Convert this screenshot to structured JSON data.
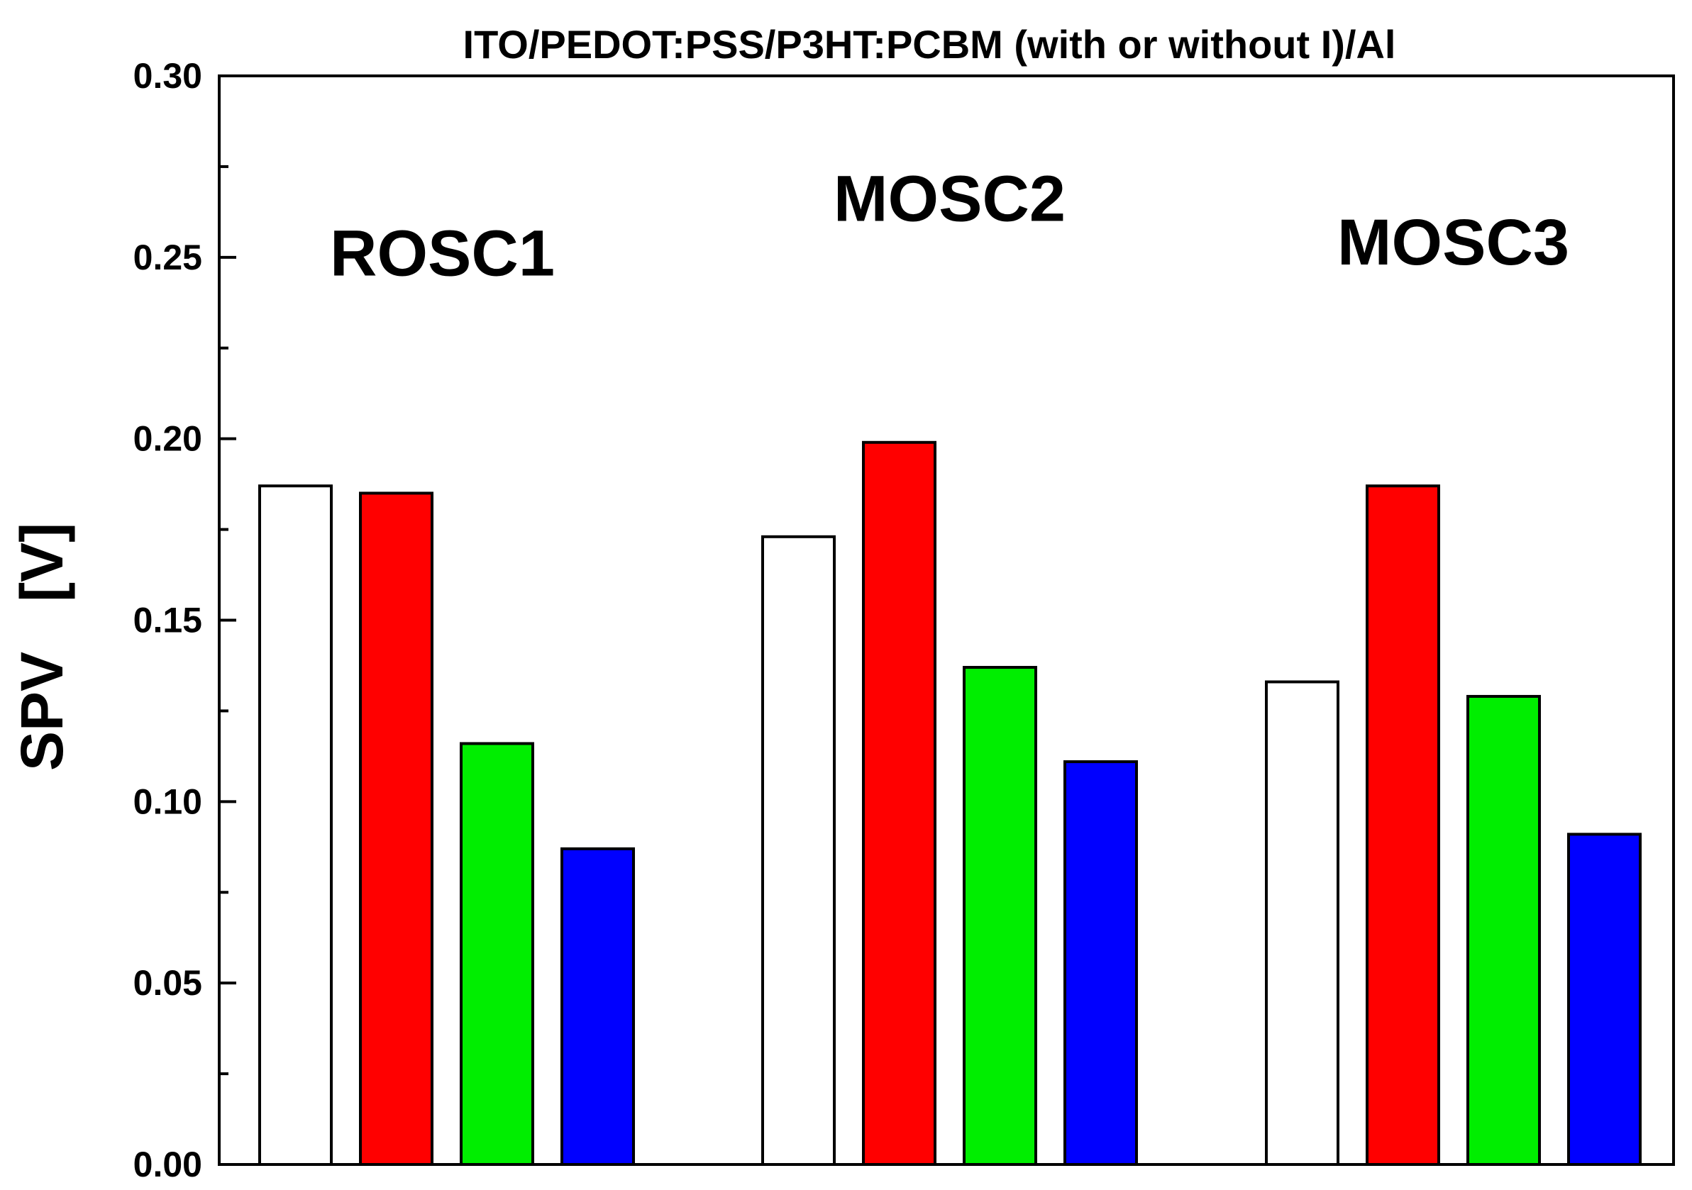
{
  "chart_data": {
    "type": "bar",
    "title": "ITO/PEDOT:PSS/P3HT:PCBM (with or without I)/Al",
    "xlabel": "",
    "ylabel": "SPV   [V]",
    "ylim": [
      0.0,
      0.3
    ],
    "ytick_labels": [
      "0.00",
      "0.05",
      "0.10",
      "0.15",
      "0.20",
      "0.25",
      "0.30"
    ],
    "yticks": [
      0.0,
      0.05,
      0.1,
      0.15,
      0.2,
      0.25,
      0.3
    ],
    "yminor_step": 0.025,
    "grid": false,
    "legend": "none",
    "categories": [
      "ROSC1",
      "MOSC2",
      "MOSC3"
    ],
    "series": [
      {
        "name": "white",
        "color": "#ffffff",
        "values": [
          0.187,
          0.173,
          0.133
        ]
      },
      {
        "name": "red",
        "color": "#ff0000",
        "values": [
          0.185,
          0.199,
          0.187
        ]
      },
      {
        "name": "green",
        "color": "#00ee00",
        "values": [
          0.116,
          0.137,
          0.129
        ]
      },
      {
        "name": "blue",
        "color": "#0000ff",
        "values": [
          0.087,
          0.111,
          0.091
        ]
      }
    ],
    "group_label_levels": [
      0.245,
      0.26,
      0.248
    ]
  }
}
